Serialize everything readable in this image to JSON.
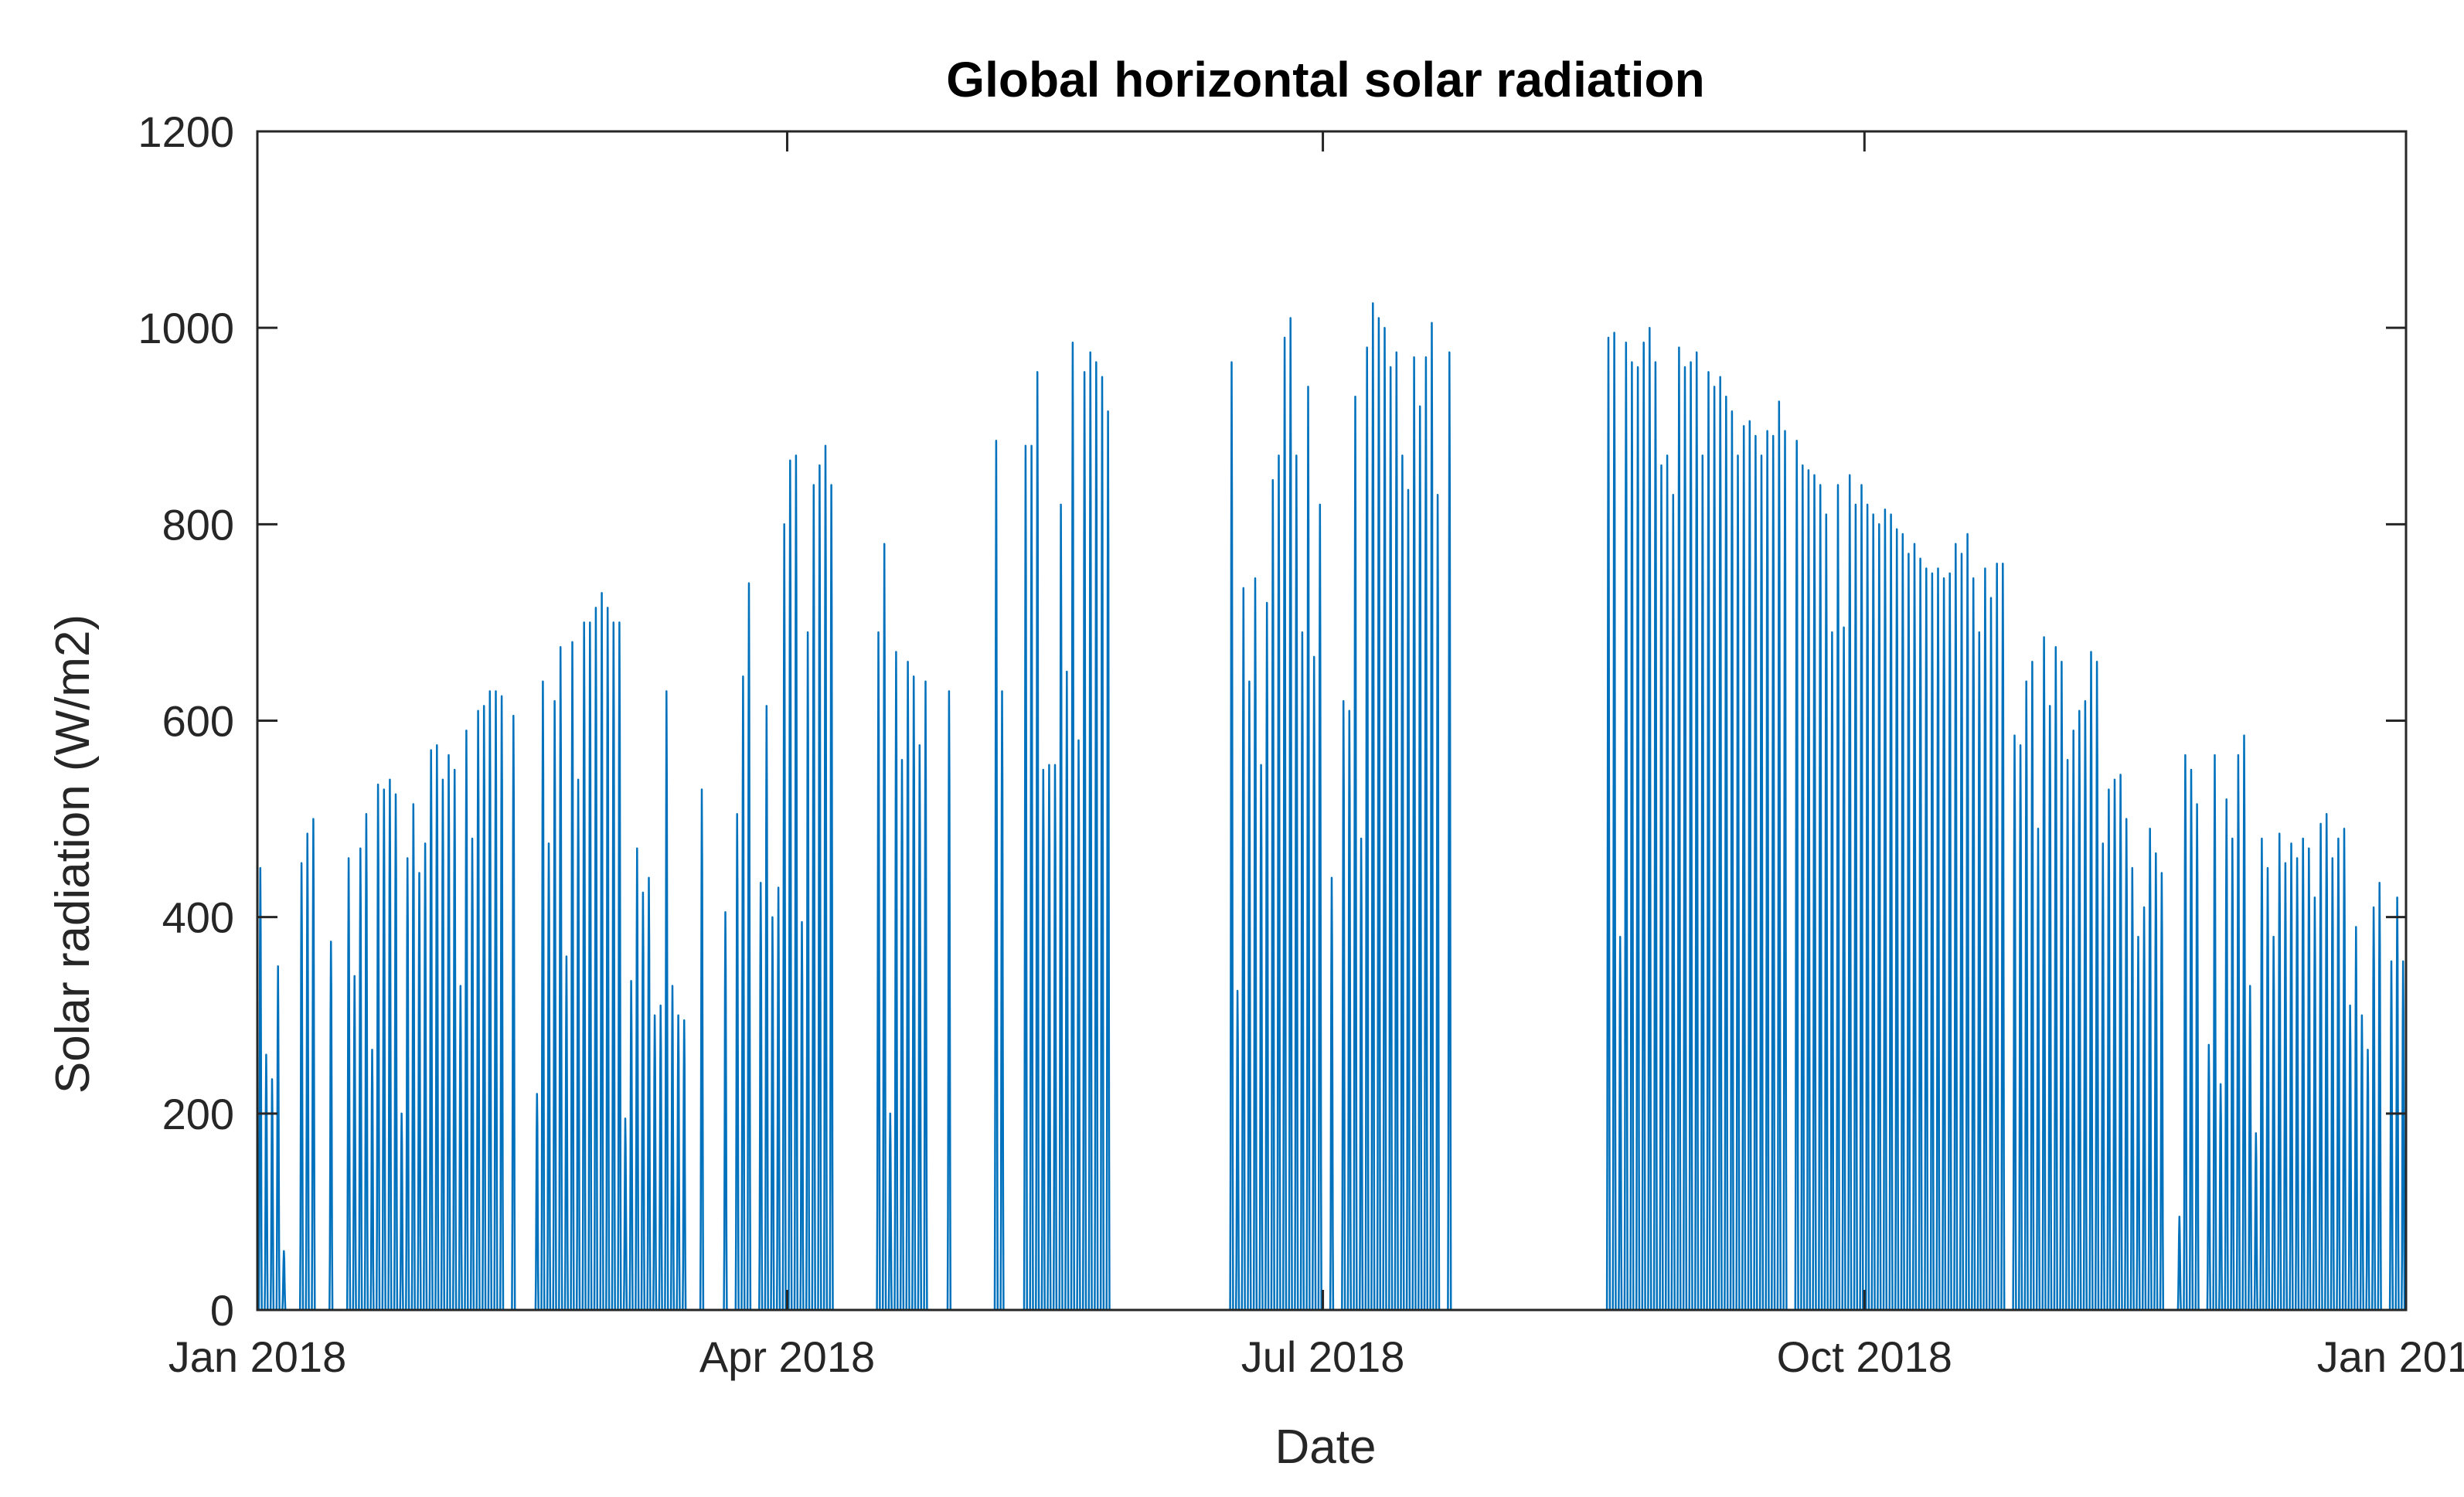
{
  "chart_data": {
    "type": "line",
    "title": "Global horizontal solar radiation",
    "xlabel": "Date",
    "ylabel": "Solar radiation (W/m2)",
    "ylim": [
      0,
      1200
    ],
    "xlim": [
      "2018-01-01",
      "2019-01-01"
    ],
    "grid": false,
    "line_color": "#0072BD",
    "yticks": [
      {
        "value": 0,
        "label": "0"
      },
      {
        "value": 200,
        "label": "200"
      },
      {
        "value": 400,
        "label": "400"
      },
      {
        "value": 600,
        "label": "600"
      },
      {
        "value": 800,
        "label": "800"
      },
      {
        "value": 1000,
        "label": "1000"
      },
      {
        "value": 1200,
        "label": "1200"
      }
    ],
    "xticks": [
      {
        "day": 0,
        "label": "Jan 2018"
      },
      {
        "day": 90,
        "label": "Apr 2018"
      },
      {
        "day": 181,
        "label": "Jul 2018"
      },
      {
        "day": 273,
        "label": "Oct 2018"
      },
      {
        "day": 365,
        "label": "Jan 2019"
      }
    ],
    "series": [
      {
        "name": "Global horizontal solar radiation",
        "description": "Hourly values; one daytime peak per day",
        "day_offset": 0,
        "daily_peaks": [
          450,
          260,
          235,
          350,
          60,
          0,
          0,
          455,
          485,
          500,
          0,
          0,
          375,
          0,
          0,
          460,
          340,
          470,
          505,
          265,
          535,
          530,
          540,
          525,
          200,
          460,
          515,
          445,
          475,
          570,
          575,
          540,
          565,
          550,
          330,
          590,
          480,
          610,
          615,
          630,
          630,
          625,
          0,
          605,
          0,
          0,
          0,
          220,
          640,
          475,
          620,
          675,
          360,
          680,
          540,
          700,
          700,
          715,
          730,
          715,
          700,
          700,
          195,
          335,
          470,
          425,
          440,
          300,
          310,
          630,
          330,
          300,
          295,
          0,
          0,
          530,
          0,
          0,
          0,
          405,
          0,
          505,
          645,
          740,
          0,
          435,
          615,
          400,
          430,
          800,
          865,
          870,
          395,
          690,
          840,
          860,
          880,
          840,
          0,
          0,
          0,
          0,
          0,
          0,
          0,
          690,
          780,
          200,
          670,
          560,
          660,
          645,
          575,
          640,
          0,
          0,
          0,
          630,
          0,
          0,
          0,
          0,
          0,
          0,
          0,
          885,
          630,
          0,
          0,
          0,
          880,
          880,
          955,
          550,
          555,
          555,
          820,
          650,
          985,
          580,
          955,
          975,
          965,
          950,
          915,
          0,
          0,
          0,
          0,
          0,
          0,
          0,
          0,
          0,
          0,
          0,
          0,
          0,
          0,
          0,
          0,
          0,
          0,
          0,
          0,
          965,
          325,
          735,
          640,
          745,
          555,
          720,
          845,
          870,
          990,
          1010,
          870,
          690,
          940,
          665,
          820,
          0,
          440,
          0,
          620,
          610,
          930,
          480,
          980,
          1025,
          1010,
          1000,
          960,
          975,
          870,
          835,
          970,
          920,
          970,
          1005,
          830,
          0,
          975,
          0,
          0,
          0,
          0,
          0,
          0,
          0,
          0,
          0,
          0,
          0,
          0,
          0,
          0,
          0,
          0,
          0,
          0,
          0,
          0,
          0,
          0,
          0,
          0,
          0,
          0,
          990,
          995,
          380,
          985,
          965,
          960,
          985,
          1000,
          965,
          860,
          870,
          830,
          980,
          960,
          965,
          975,
          870,
          955,
          940,
          950,
          930,
          915,
          870,
          900,
          905,
          890,
          870,
          895,
          890,
          925,
          895,
          0,
          885,
          860,
          855,
          850,
          840,
          810,
          690,
          840,
          695,
          850,
          820,
          840,
          820,
          810,
          800,
          815,
          810,
          795,
          790,
          770,
          780,
          765,
          755,
          750,
          755,
          745,
          750,
          780,
          770,
          790,
          745,
          690,
          755,
          725,
          760,
          760,
          0,
          585,
          575,
          640,
          660,
          490,
          685,
          615,
          675,
          660,
          560,
          590,
          610,
          620,
          670,
          660,
          475,
          530,
          540,
          545,
          500,
          450,
          380,
          410,
          490,
          465,
          445,
          0,
          0,
          95,
          565,
          550,
          515,
          0,
          270,
          565,
          230,
          520,
          480,
          565,
          585,
          330,
          180,
          480,
          450,
          380,
          485,
          455,
          475,
          460,
          480,
          470,
          420,
          495,
          505,
          460,
          480,
          490,
          310,
          390,
          300,
          265,
          410,
          435,
          0,
          355,
          420,
          355,
          415,
          355,
          290,
          440,
          400,
          485,
          490,
          495,
          505,
          500,
          520,
          515,
          525,
          510,
          515,
          520,
          525,
          530
        ]
      }
    ]
  }
}
